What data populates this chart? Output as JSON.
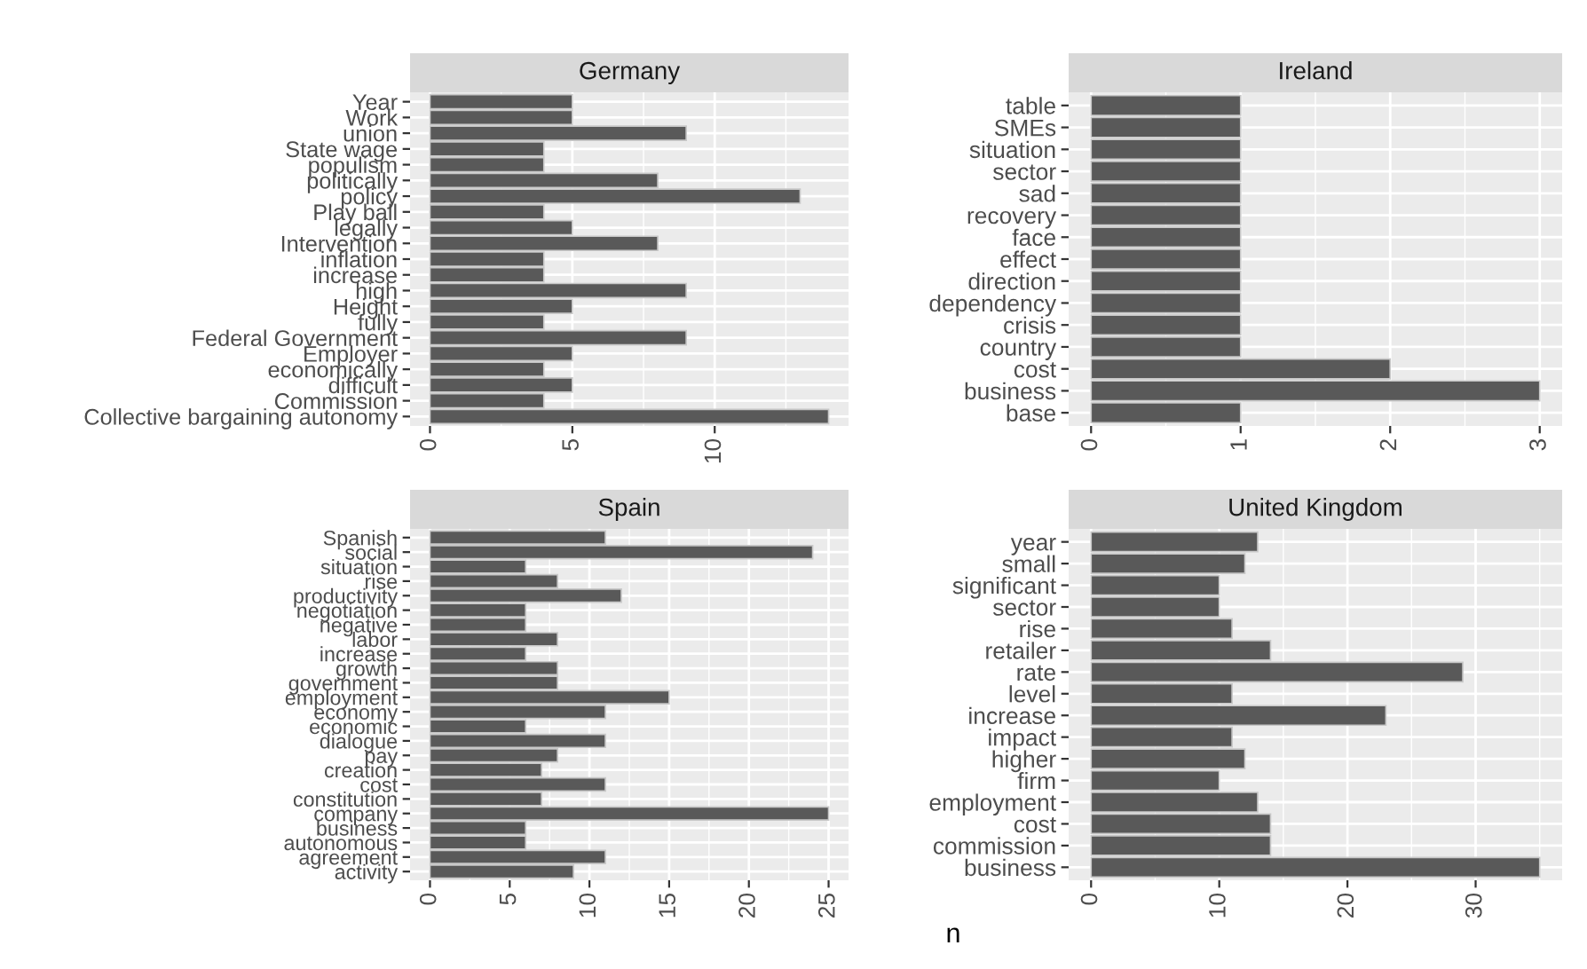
{
  "chart_data": [
    {
      "type": "bar",
      "orientation": "horizontal",
      "title": "Germany",
      "grid": true,
      "color": "#595959",
      "categories": [
        "Year",
        "Work",
        "union",
        "State wage",
        "populism",
        "politically",
        "policy",
        "Play ball",
        "legally",
        "Intervention",
        "inflation",
        "increase",
        "high",
        "Height",
        "fully",
        "Federal Government",
        "Employer",
        "economically",
        "difficult",
        "Commission",
        "Collective bargaining autonomy"
      ],
      "values": [
        5,
        5,
        9,
        4,
        4,
        8,
        13,
        4,
        5,
        8,
        4,
        4,
        9,
        5,
        4,
        9,
        5,
        4,
        5,
        4,
        14
      ],
      "xlim": [
        -0.7,
        14.7
      ],
      "xticks": [
        0,
        5,
        10
      ]
    },
    {
      "type": "bar",
      "orientation": "horizontal",
      "title": "Ireland",
      "grid": true,
      "color": "#595959",
      "categories": [
        "table",
        "SMEs",
        "situation",
        "sector",
        "sad",
        "recovery",
        "face",
        "effect",
        "direction",
        "dependency",
        "crisis",
        "country",
        "cost",
        "business",
        "base"
      ],
      "values": [
        1,
        1,
        1,
        1,
        1,
        1,
        1,
        1,
        1,
        1,
        1,
        1,
        2,
        3,
        1
      ],
      "xlim": [
        -0.15,
        3.15
      ],
      "xticks": [
        0,
        1,
        2,
        3
      ]
    },
    {
      "type": "bar",
      "orientation": "horizontal",
      "title": "Spain",
      "grid": true,
      "color": "#595959",
      "categories": [
        "Spanish",
        "social",
        "situation",
        "rise",
        "productivity",
        "negotiation",
        "negative",
        "labor",
        "increase",
        "growth",
        "government",
        "employment",
        "economy",
        "economic",
        "dialogue",
        "pay",
        "creation",
        "cost",
        "constitution",
        "company",
        "business",
        "autonomous",
        "agreement",
        "activity"
      ],
      "values": [
        11,
        24,
        6,
        8,
        12,
        6,
        6,
        8,
        6,
        8,
        8,
        15,
        11,
        6,
        11,
        8,
        7,
        11,
        7,
        25,
        6,
        6,
        11,
        9
      ],
      "xlim": [
        -1.25,
        26.25
      ],
      "xticks": [
        0,
        5,
        10,
        15,
        20,
        25
      ]
    },
    {
      "type": "bar",
      "orientation": "horizontal",
      "title": "United Kingdom",
      "grid": true,
      "color": "#595959",
      "xlabel": "n",
      "categories": [
        "year",
        "small",
        "significant",
        "sector",
        "rise",
        "retailer",
        "rate",
        "level",
        "increase",
        "impact",
        "higher",
        "firm",
        "employment",
        "cost",
        "commission",
        "business"
      ],
      "values": [
        13,
        12,
        10,
        10,
        11,
        14,
        29,
        11,
        23,
        11,
        12,
        10,
        13,
        14,
        14,
        35
      ],
      "xlim": [
        -1.75,
        36.75
      ],
      "xticks": [
        0,
        10,
        20,
        30
      ]
    }
  ]
}
